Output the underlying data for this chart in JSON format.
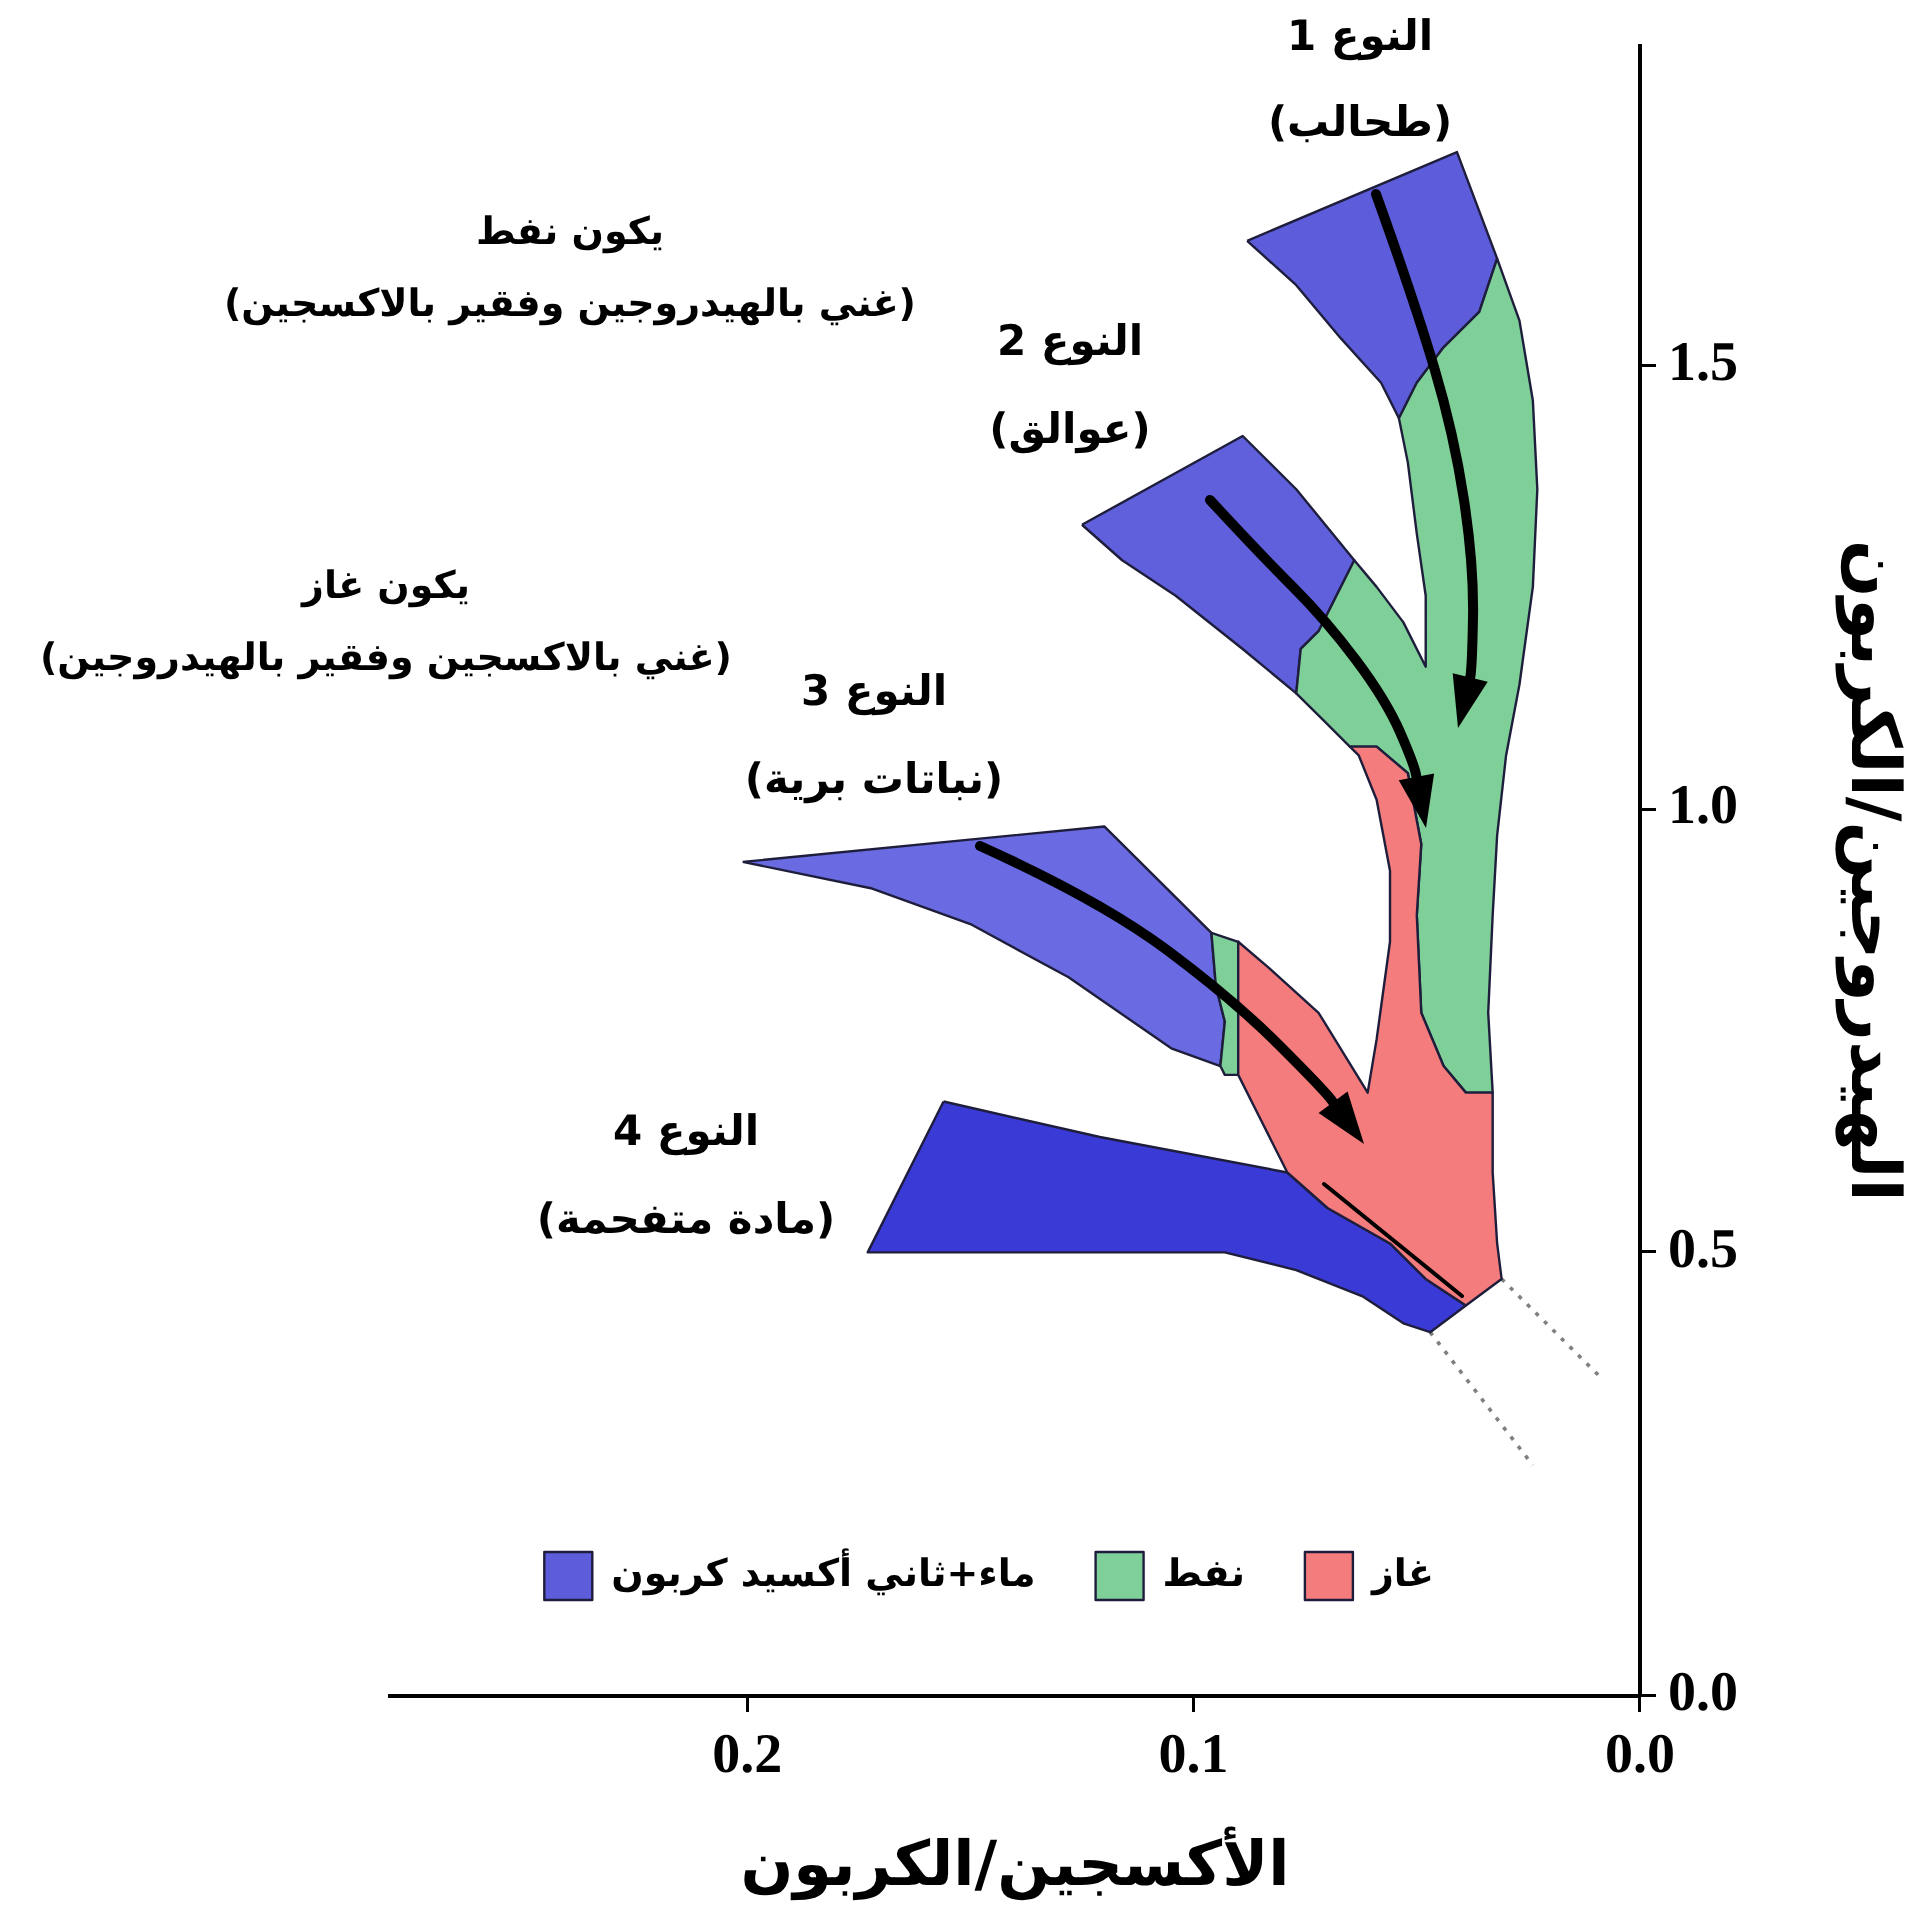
{
  "chart_data": {
    "type": "area",
    "xlabel": "الأكسجين/الكربون",
    "ylabel": "الهيدروجين/الكربون",
    "xlim": [
      0.28,
      0
    ],
    "ylim": [
      0,
      1.86
    ],
    "xticks": [
      0.2,
      0.1,
      {
        "value": 0,
        "label": "0.0"
      }
    ],
    "yticks": [
      {
        "value": 0,
        "label": "0.0"
      },
      0.5,
      {
        "value": 1,
        "label": "1.0"
      },
      1.5
    ],
    "legend": "bottom",
    "marker": "none",
    "annotations": [
      "النوع 1\n(طحالب)",
      "النوع 2\n(عوالق)",
      "النوع 3\n(نباتات برية)",
      "النوع 4\n(مادة متفحمة)",
      "يكون نفط\n(غني بالهيدروجين وفقير بالاكسجين)",
      "يكون غاز\n(غني بالاكسجين وفقير بالهيدروجين)"
    ],
    "series": [
      {
        "name": "غاز",
        "color": "#f47c7c",
        "x": [
          0.039,
          0.048,
          0.056,
          0.07,
          0.079,
          0.085,
          0.09,
          0.09,
          0.083,
          0.072,
          0.061,
          0.059,
          0.056,
          0.056,
          0.059,
          0.063,
          0.065,
          0.059,
          0.052,
          0.049,
          0.05,
          0.049,
          0.044,
          0.039,
          0.033,
          0.033,
          0.032,
          0.031,
          0.039
        ],
        "values": [
          0.44,
          0.47,
          0.51,
          0.55,
          0.59,
          0.65,
          0.7,
          0.85,
          0.82,
          0.77,
          0.68,
          0.74,
          0.85,
          0.93,
          1.01,
          1.06,
          1.07,
          1.07,
          1.04,
          0.96,
          0.88,
          0.77,
          0.71,
          0.68,
          0.68,
          0.59,
          0.51,
          0.47,
          0.44
        ]
      },
      {
        "name": "نفط",
        "color": "#7fcf98",
        "x": [
          0.032,
          0.027,
          0.024,
          0.023,
          0.024,
          0.027,
          0.03,
          0.032,
          0.033,
          0.034,
          0.033,
          0.039,
          0.044,
          0.049,
          0.05,
          0.049,
          0.052,
          0.059,
          0.065,
          0.071,
          0.077,
          0.076,
          0.072,
          0.068,
          0.064,
          0.059,
          0.053,
          0.048,
          0.048,
          0.05,
          0.052,
          0.054,
          0.05,
          0.044,
          0.036,
          0.032
        ],
        "values": [
          1.62,
          1.55,
          1.46,
          1.36,
          1.25,
          1.14,
          1.06,
          0.97,
          0.88,
          0.77,
          0.68,
          0.68,
          0.71,
          0.77,
          0.88,
          0.96,
          1.04,
          1.07,
          1.07,
          1.1,
          1.13,
          1.18,
          1.2,
          1.24,
          1.28,
          1.25,
          1.21,
          1.16,
          1.24,
          1.31,
          1.39,
          1.44,
          1.48,
          1.52,
          1.56,
          1.62
        ]
      },
      {
        "color": "#7fcf98",
        "x": [
          0.096,
          0.09,
          0.09,
          0.093,
          0.094,
          0.093,
          0.095,
          0.096
        ],
        "values": [
          0.86,
          0.85,
          0.7,
          0.7,
          0.71,
          0.76,
          0.8,
          0.86
        ]
      },
      {
        "name": "ماء+ثاني أكسيد كربون",
        "color": "#5d5ddb",
        "x": [
          0.088,
          0.041,
          0.032,
          0.036,
          0.044,
          0.05,
          0.054,
          0.058,
          0.067,
          0.077,
          0.088
        ],
        "values": [
          1.64,
          1.74,
          1.62,
          1.56,
          1.52,
          1.48,
          1.44,
          1.48,
          1.53,
          1.59,
          1.64
        ]
      },
      {
        "color": "#6060dd",
        "x": [
          0.125,
          0.089,
          0.077,
          0.064,
          0.068,
          0.072,
          0.076,
          0.077,
          0.089,
          0.104,
          0.116,
          0.125
        ],
        "values": [
          1.32,
          1.42,
          1.36,
          1.28,
          1.24,
          1.2,
          1.18,
          1.13,
          1.18,
          1.24,
          1.28,
          1.32
        ]
      },
      {
        "color": "#6a6ae2",
        "x": [
          0.201,
          0.12,
          0.096,
          0.095,
          0.093,
          0.094,
          0.105,
          0.128,
          0.15,
          0.172,
          0.201
        ],
        "values": [
          0.94,
          0.98,
          0.86,
          0.8,
          0.76,
          0.71,
          0.73,
          0.81,
          0.87,
          0.91,
          0.94
        ]
      },
      {
        "color": "#3a3ad6",
        "x": [
          0.156,
          0.121,
          0.079,
          0.07,
          0.056,
          0.048,
          0.039,
          0.047,
          0.053,
          0.062,
          0.077,
          0.093,
          0.173,
          0.156
        ],
        "values": [
          0.67,
          0.63,
          0.59,
          0.55,
          0.51,
          0.47,
          0.44,
          0.41,
          0.42,
          0.45,
          0.48,
          0.5,
          0.5,
          0.67
        ]
      },
      {
        "type": "line",
        "line_style": "dotted",
        "color": "#808080",
        "x": [
          0.047,
          0.024
        ],
        "values": [
          0.41,
          0.26
        ]
      },
      {
        "type": "line",
        "line_style": "dotted",
        "color": "#808080",
        "x": [
          0.031,
          0.009
        ],
        "values": [
          0.47,
          0.36
        ]
      }
    ]
  }
}
